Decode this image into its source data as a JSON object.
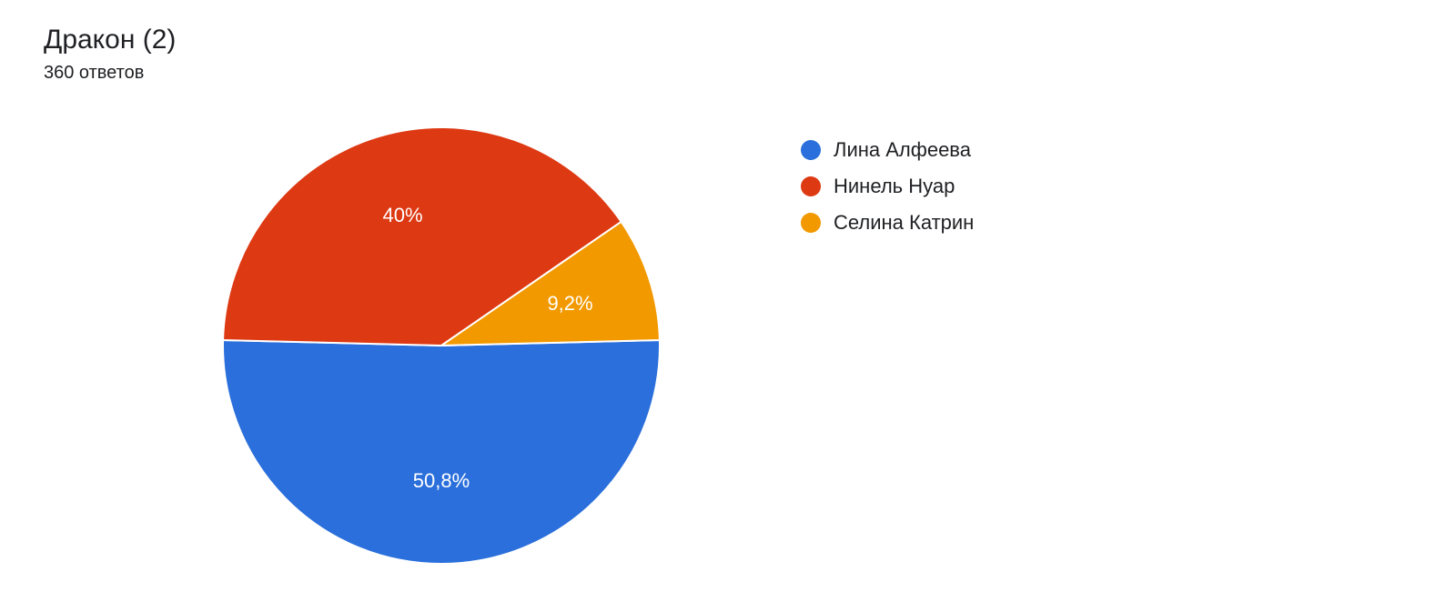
{
  "header": {
    "title": "Дракон (2)",
    "subtitle": "360 ответов"
  },
  "chart": {
    "type": "pie",
    "background_color": "#ffffff",
    "radius": 240,
    "label_fontsize": 22,
    "label_color": "#ffffff",
    "slice_separator_color": "#ffffff",
    "slice_separator_width": 2,
    "slices": [
      {
        "label": "Лина Алфеева",
        "value": 50.8,
        "display": "50,8%",
        "color": "#2a6fdb"
      },
      {
        "label": "Нинель Нуар",
        "value": 40.0,
        "display": "40%",
        "color": "#dd3913"
      },
      {
        "label": "Селина Катрин",
        "value": 9.2,
        "display": "9,2%",
        "color": "#f29900"
      }
    ]
  },
  "legend": {
    "item_fontsize": 22,
    "text_color": "#202124"
  }
}
